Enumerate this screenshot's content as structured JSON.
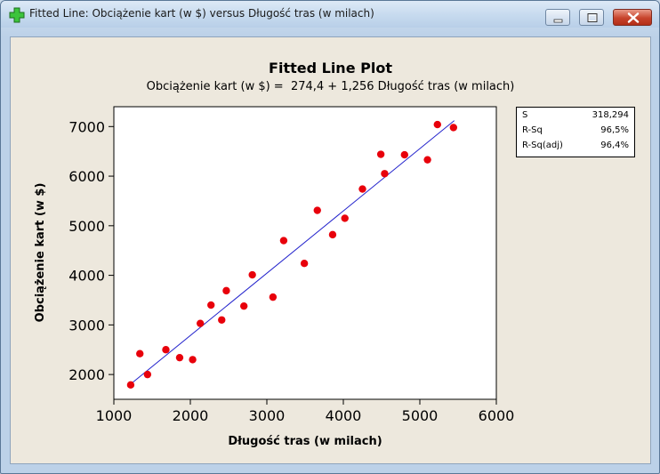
{
  "window": {
    "title": "Fitted Line: Obciążenie kart (w $) versus Długość tras (w milach)"
  },
  "plot": {
    "title": "Fitted Line Plot",
    "equation": "Obciążenie kart (w $) =  274,4 + 1,256 Długość tras (w milach)"
  },
  "stats": [
    {
      "label": "S",
      "value": "318,294"
    },
    {
      "label": "R-Sq",
      "value": "96,5%"
    },
    {
      "label": "R-Sq(adj)",
      "value": "96,4%"
    }
  ],
  "chart_data": {
    "type": "scatter",
    "title": "Fitted Line Plot",
    "xlabel": "Długość tras (w milach)",
    "ylabel": "Obciążenie kart  (w $)",
    "xlim": [
      1000,
      6000
    ],
    "ylim": [
      1500,
      7400
    ],
    "x_ticks": [
      1000,
      2000,
      3000,
      4000,
      5000,
      6000
    ],
    "y_ticks": [
      2000,
      3000,
      4000,
      5000,
      6000,
      7000
    ],
    "grid": false,
    "point_color": "#e8000b",
    "fit_line_color": "#2222cc",
    "fit": {
      "intercept": 274.4,
      "slope": 1.256,
      "x_range": [
        1200,
        5450
      ]
    },
    "points": [
      {
        "x": 1220,
        "y": 1790
      },
      {
        "x": 1340,
        "y": 2420
      },
      {
        "x": 1440,
        "y": 2000
      },
      {
        "x": 1680,
        "y": 2500
      },
      {
        "x": 1860,
        "y": 2340
      },
      {
        "x": 2030,
        "y": 2300
      },
      {
        "x": 2130,
        "y": 3030
      },
      {
        "x": 2270,
        "y": 3400
      },
      {
        "x": 2410,
        "y": 3100
      },
      {
        "x": 2470,
        "y": 3690
      },
      {
        "x": 2700,
        "y": 3380
      },
      {
        "x": 2810,
        "y": 4010
      },
      {
        "x": 3080,
        "y": 3560
      },
      {
        "x": 3220,
        "y": 4700
      },
      {
        "x": 3490,
        "y": 4240
      },
      {
        "x": 3660,
        "y": 5310
      },
      {
        "x": 3860,
        "y": 4820
      },
      {
        "x": 4020,
        "y": 5150
      },
      {
        "x": 4250,
        "y": 5740
      },
      {
        "x": 4490,
        "y": 6440
      },
      {
        "x": 4540,
        "y": 6050
      },
      {
        "x": 4800,
        "y": 6430
      },
      {
        "x": 5100,
        "y": 6330
      },
      {
        "x": 5230,
        "y": 7040
      },
      {
        "x": 5440,
        "y": 6980
      }
    ]
  }
}
